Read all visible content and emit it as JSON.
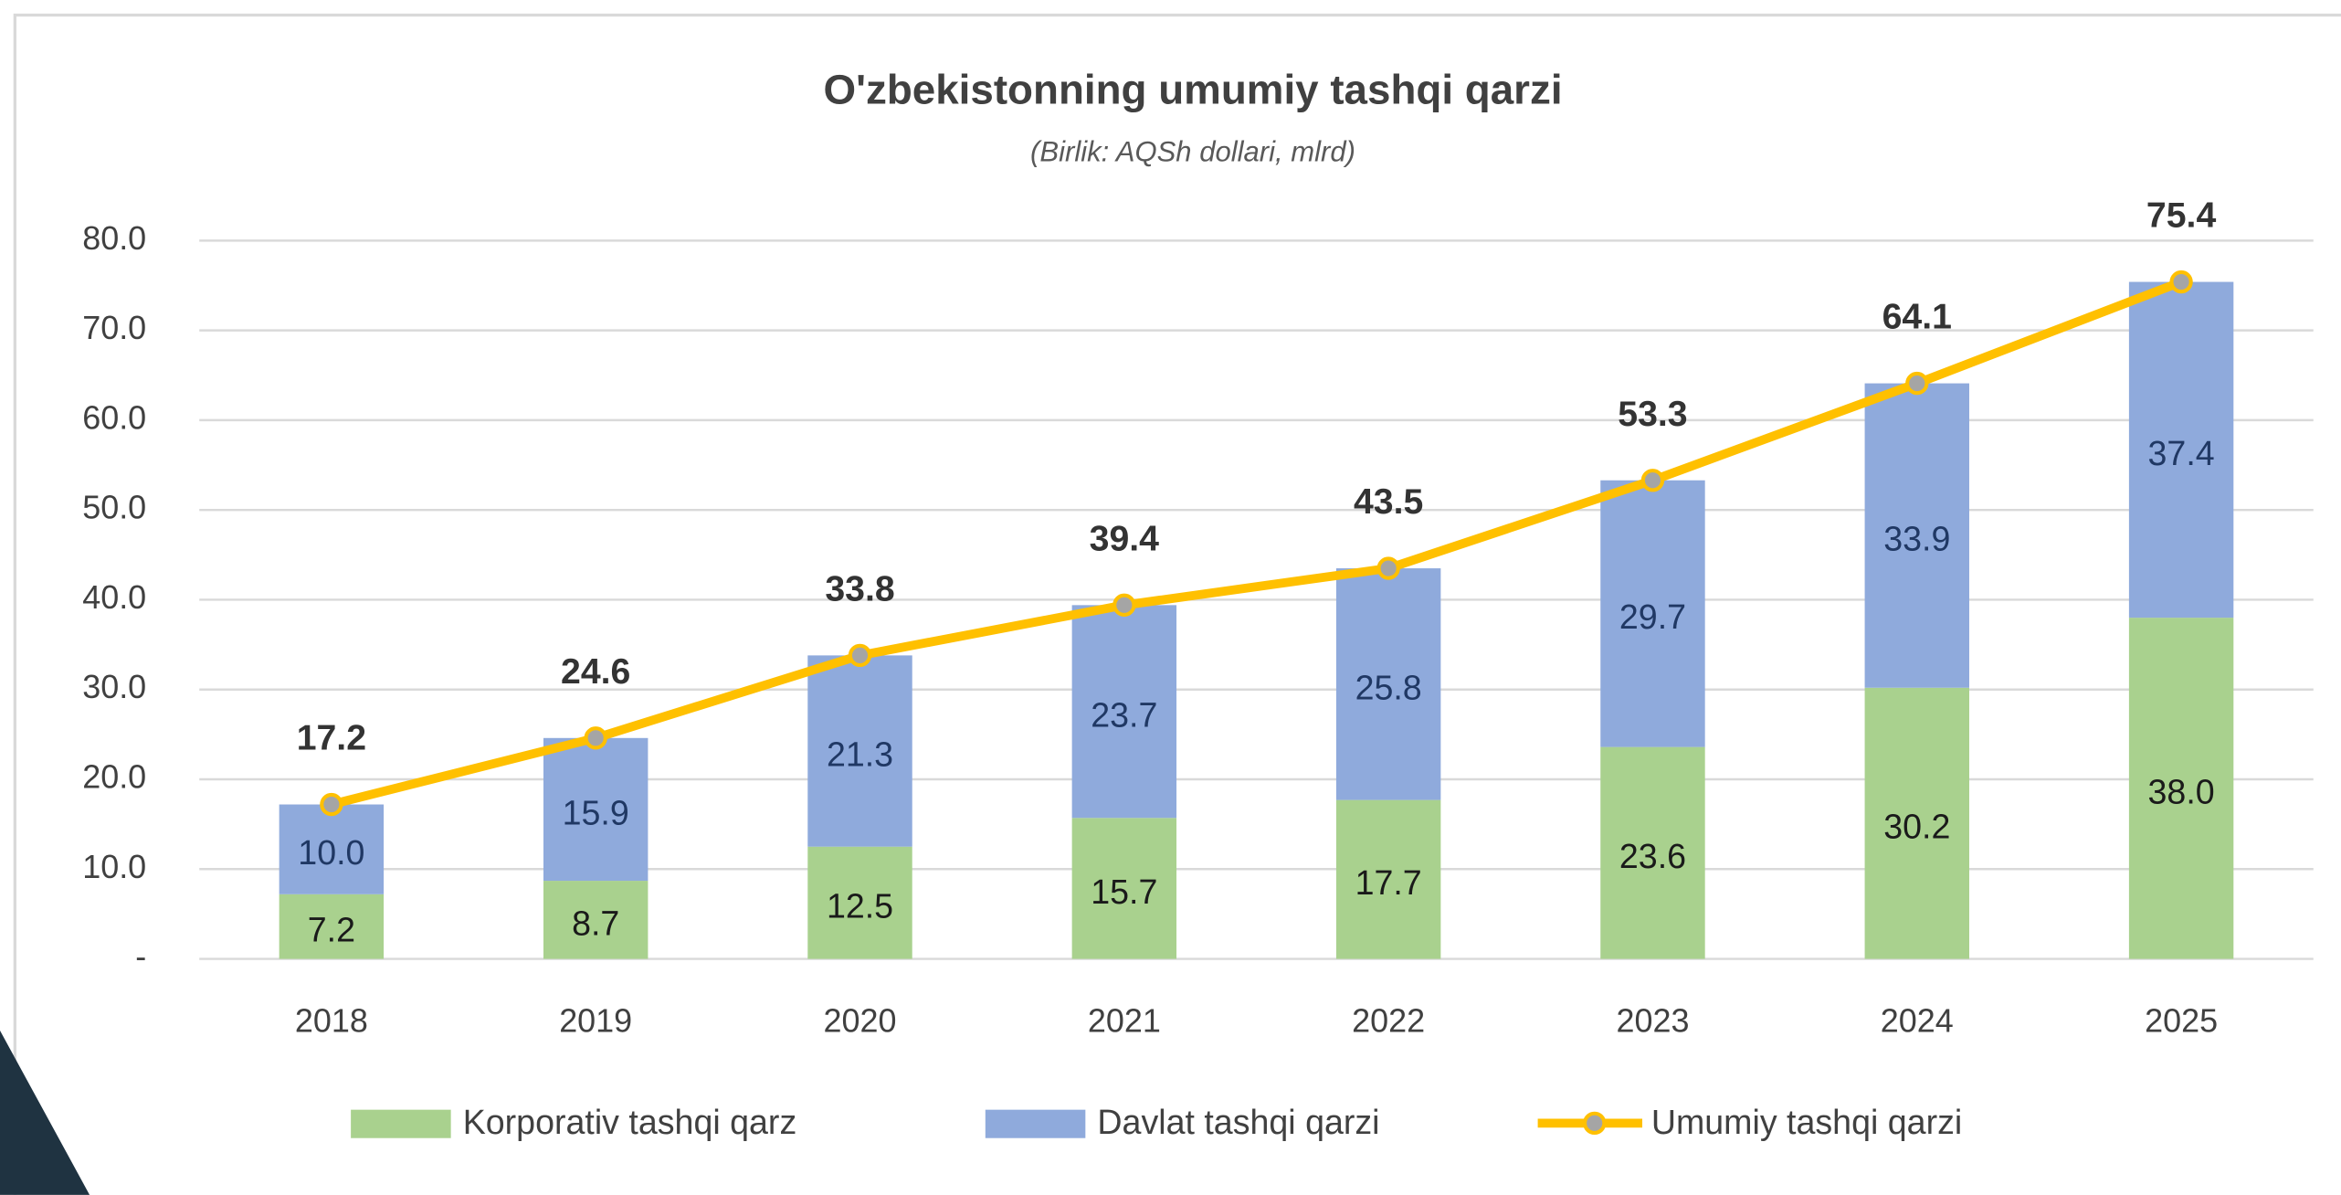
{
  "chart_data": {
    "type": "bar",
    "stacked": true,
    "title": "O'zbekistonning umumiy tashqi qarzi",
    "subtitle": "(Birlik: AQSh dollari, mlrd)",
    "categories": [
      "2018",
      "2019",
      "2020",
      "2021",
      "2022",
      "2023",
      "2024",
      "2025"
    ],
    "series": [
      {
        "name": "Korporativ tashqi qarz",
        "color": "#a9d18e",
        "label_color": "#1a1a1a",
        "values": [
          7.2,
          8.7,
          12.5,
          15.7,
          17.7,
          23.6,
          30.2,
          38.0
        ],
        "value_labels": [
          "7.2",
          "8.7",
          "12.5",
          "15.7",
          "17.7",
          "23.6",
          "30.2",
          "38.0"
        ]
      },
      {
        "name": "Davlat tashqi qarzi",
        "color": "#8faadc",
        "label_color": "#203864",
        "values": [
          10.0,
          15.9,
          21.3,
          23.7,
          25.8,
          29.7,
          33.9,
          37.4
        ],
        "value_labels": [
          "10.0",
          "15.9",
          "21.3",
          "23.7",
          "25.8",
          "29.7",
          "33.9",
          "37.4"
        ]
      },
      {
        "name": "Umumiy tashqi qarzi",
        "type": "line",
        "color": "#ffc000",
        "marker_color": "#a5a5a5",
        "label_color": "#333333",
        "values": [
          17.2,
          24.6,
          33.8,
          39.4,
          43.5,
          53.3,
          64.1,
          75.4
        ],
        "value_labels": [
          "17.2",
          "24.6",
          "33.8",
          "39.4",
          "43.5",
          "53.3",
          "64.1",
          "75.4"
        ]
      }
    ],
    "ylim": [
      0,
      80
    ],
    "yticks": [
      {
        "value": 0,
        "label": "-"
      },
      {
        "value": 10,
        "label": "10.0"
      },
      {
        "value": 20,
        "label": "20.0"
      },
      {
        "value": 30,
        "label": "30.0"
      },
      {
        "value": 40,
        "label": "40.0"
      },
      {
        "value": 50,
        "label": "50.0"
      },
      {
        "value": 60,
        "label": "60.0"
      },
      {
        "value": 70,
        "label": "70.0"
      },
      {
        "value": 80,
        "label": "80.0"
      }
    ],
    "grid": true,
    "legend": "bottom"
  }
}
